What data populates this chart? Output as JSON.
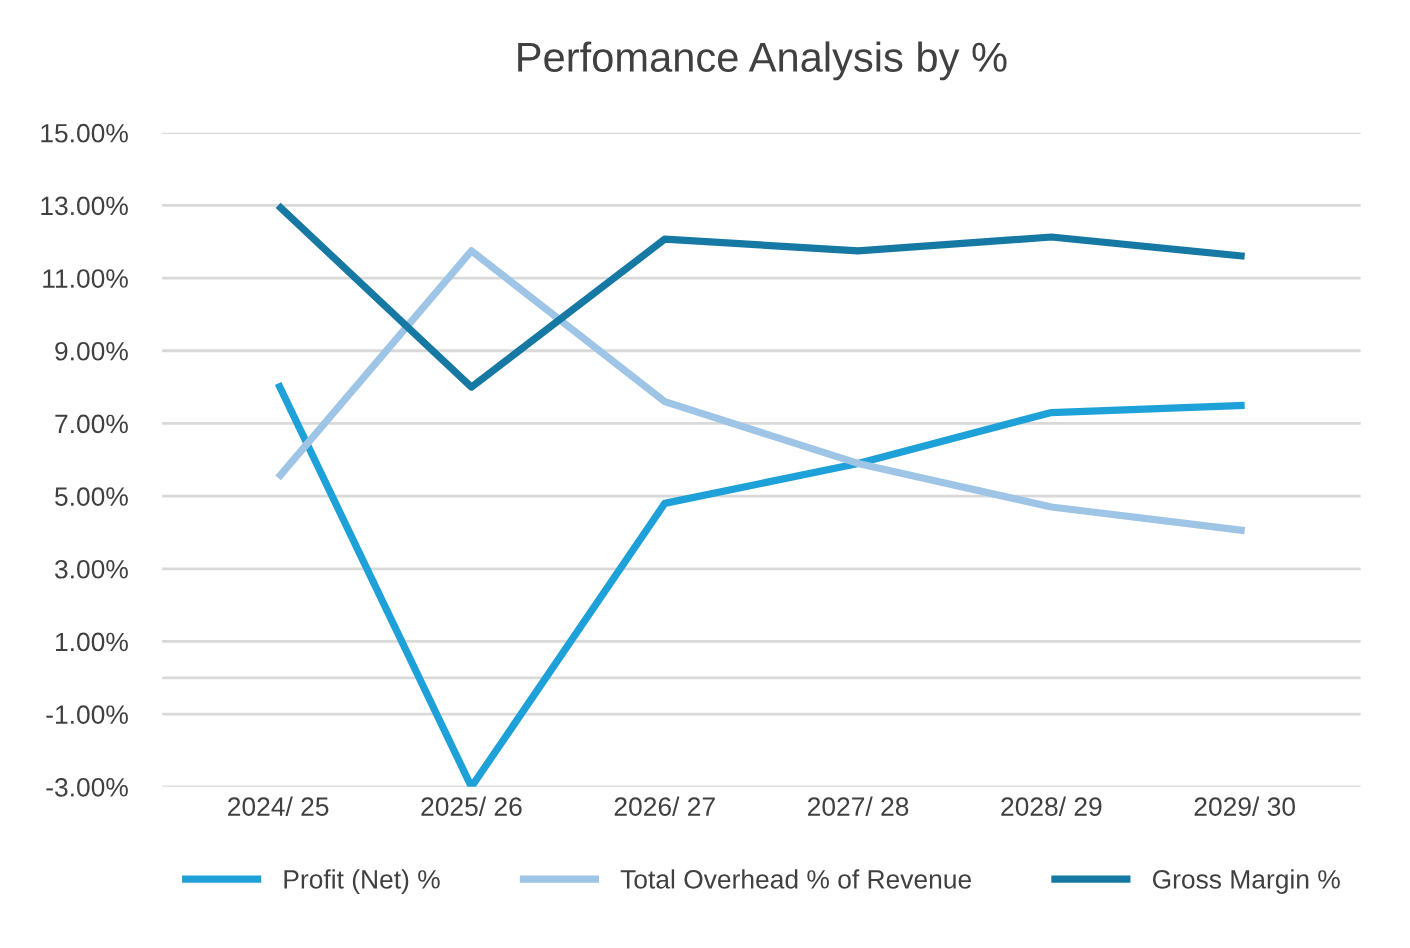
{
  "chart_data": {
    "type": "line",
    "title": "Perfomance Analysis by %",
    "categories": [
      "2024/ 25",
      "2025/ 26",
      "2026/ 27",
      "2027/ 28",
      "2028/ 29",
      "2029/ 30"
    ],
    "series": [
      {
        "name": "Profit (Net) %",
        "color": "#1ea0d8",
        "values": [
          8.1,
          -3.0,
          4.8,
          5.9,
          7.3,
          7.5
        ]
      },
      {
        "name": "Total Overhead % of Revenue",
        "color": "#9fc5e6",
        "values": [
          5.5,
          11.75,
          7.6,
          5.9,
          4.7,
          4.05
        ]
      },
      {
        "name": "Gross Margin %",
        "color": "#1679a3",
        "values": [
          13.0,
          8.0,
          12.07,
          11.75,
          12.13,
          11.6
        ]
      }
    ],
    "ylim": [
      -3,
      15
    ],
    "yticks": [
      {
        "value": -3,
        "label": "-3.00%"
      },
      {
        "value": -1,
        "label": "-1.00%"
      },
      {
        "value": 1,
        "label": "1.00%"
      },
      {
        "value": 3,
        "label": "3.00%"
      },
      {
        "value": 5,
        "label": "5.00%"
      },
      {
        "value": 7,
        "label": "7.00%"
      },
      {
        "value": 9,
        "label": "9.00%"
      },
      {
        "value": 11,
        "label": "11.00%"
      },
      {
        "value": 13,
        "label": "13.00%"
      },
      {
        "value": 15,
        "label": "15.00%"
      }
    ],
    "ref_lines": [
      {
        "axis": "y",
        "value": 0,
        "color": "#d9d9d9"
      }
    ],
    "grid": "y",
    "legend": "bottom",
    "marker": "none",
    "line_style": "solid"
  }
}
